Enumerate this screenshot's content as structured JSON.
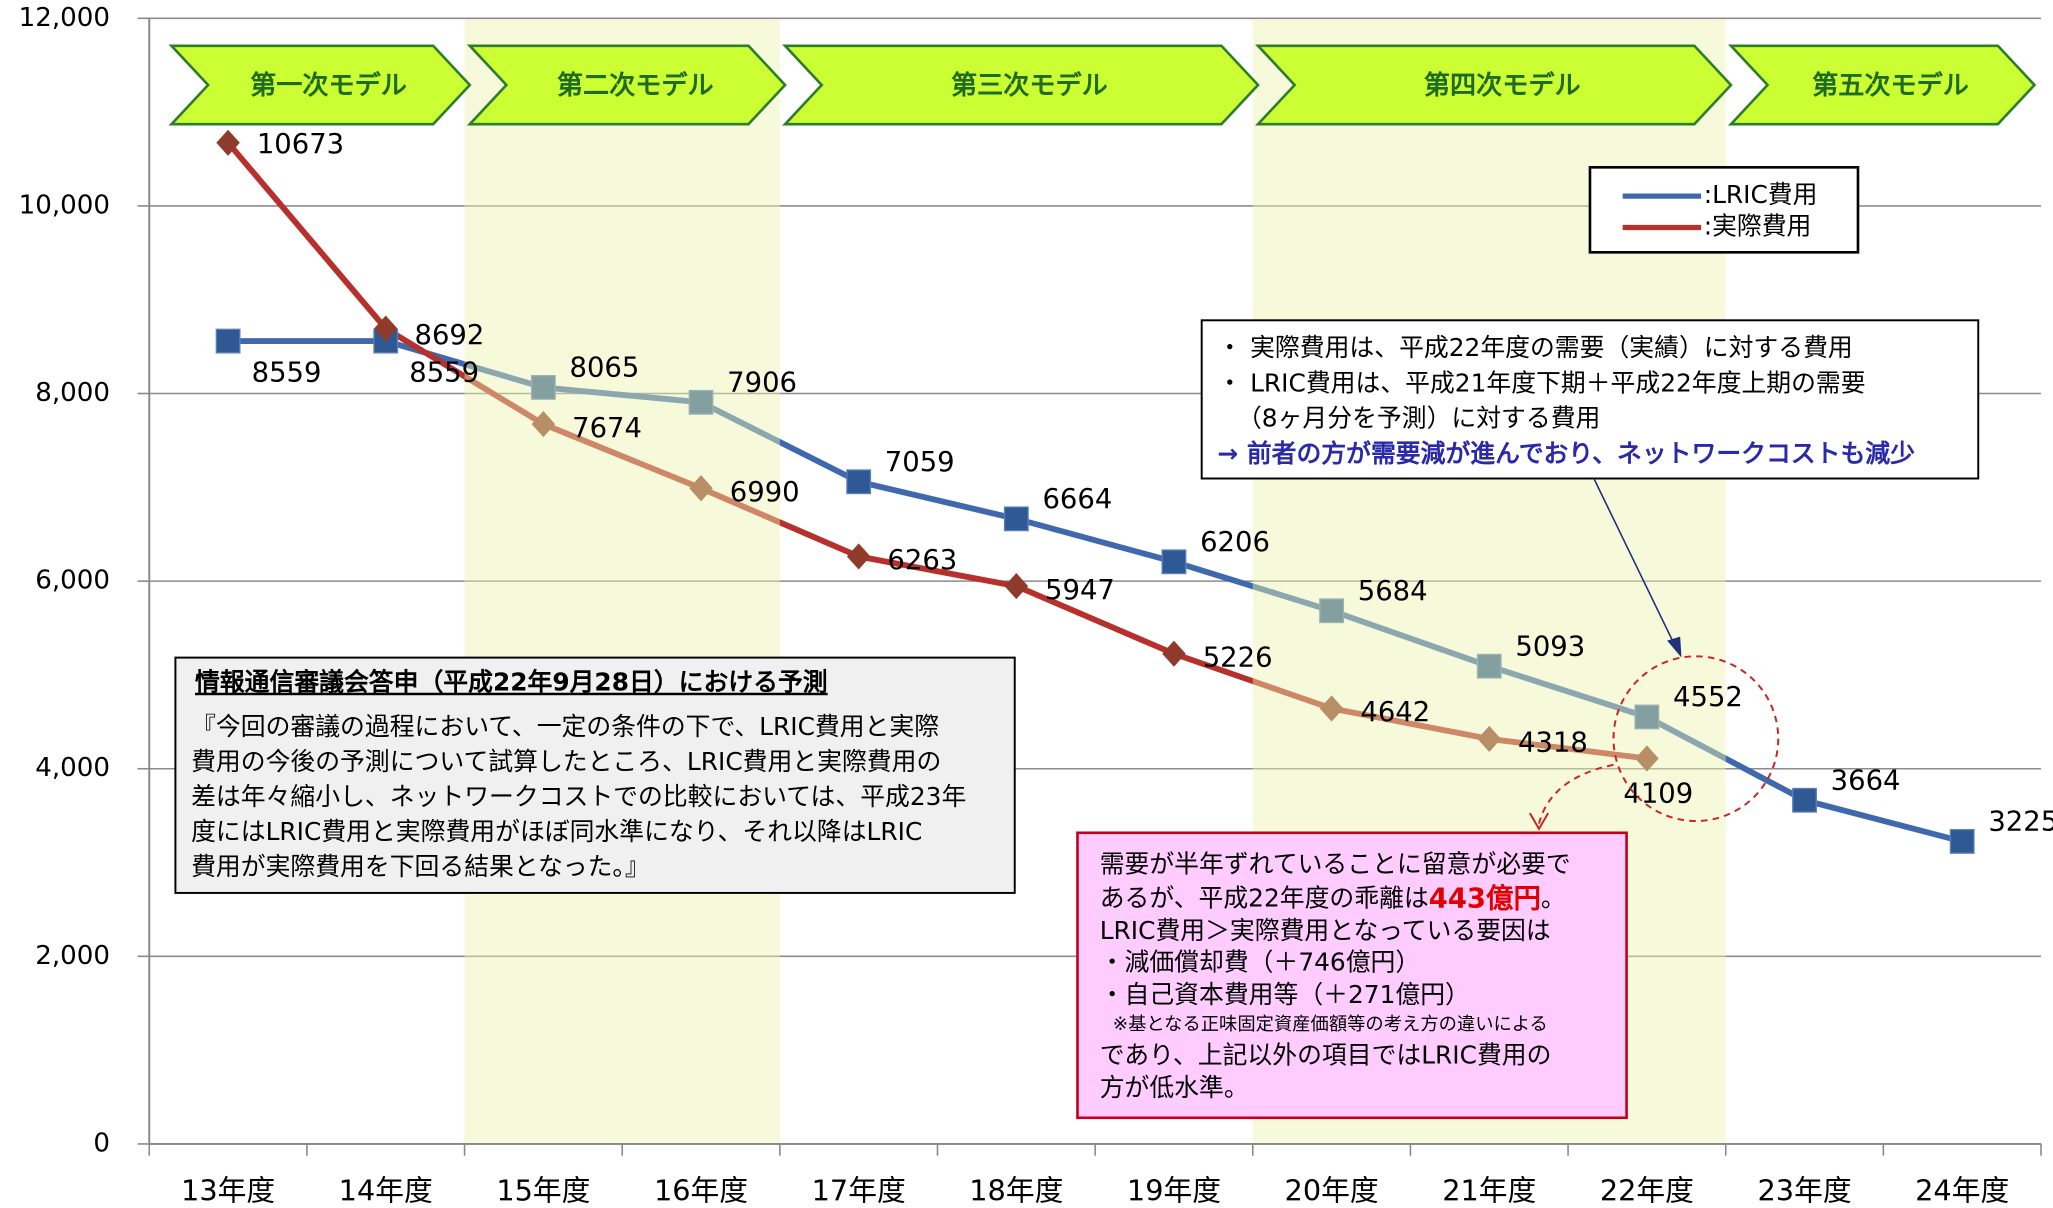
{
  "chart_data": {
    "type": "line",
    "categories": [
      "13年度",
      "14年度",
      "15年度",
      "16年度",
      "17年度",
      "18年度",
      "19年度",
      "20年度",
      "21年度",
      "22年度",
      "23年度",
      "24年度"
    ],
    "series": [
      {
        "name": ":LRIC費用",
        "color": "#4068ad",
        "marker": "square",
        "marker_color": "#2f5994",
        "values": [
          8559,
          8559,
          8065,
          7906,
          7059,
          6664,
          6206,
          5684,
          5093,
          4552,
          3664,
          3225
        ]
      },
      {
        "name": ":実際費用",
        "color": "#b8302c",
        "marker": "diamond",
        "marker_color": "#8e3b2c",
        "values": [
          10673,
          8692,
          7674,
          6990,
          6263,
          5947,
          5226,
          4642,
          4318,
          4109,
          null,
          null
        ]
      }
    ],
    "ylim": [
      0,
      12000
    ],
    "yticks": [
      0,
      {
        "value": 2000,
        "label": "2,000"
      },
      {
        "value": 4000,
        "label": "4,000"
      },
      {
        "value": 6000,
        "label": "6,000"
      },
      {
        "value": 8000,
        "label": "8,000"
      },
      {
        "value": 10000,
        "label": "10,000"
      },
      {
        "value": 12000,
        "label": "12,000"
      }
    ],
    "grid": true,
    "legend": "upper right",
    "phases": [
      {
        "label": "第一次モデル",
        "from": "13年度",
        "to": "14年度",
        "shaded": false
      },
      {
        "label": "第二次モデル",
        "from": "15年度",
        "to": "16年度",
        "shaded": true
      },
      {
        "label": "第三次モデル",
        "from": "17年度",
        "to": "19年度",
        "shaded": false
      },
      {
        "label": "第四次モデル",
        "from": "20年度",
        "to": "22年度",
        "shaded": true
      },
      {
        "label": "第五次モデル",
        "from": "23年度",
        "to": "24年度",
        "shaded": false
      }
    ],
    "note_box": {
      "lines": [
        "・ 実際費用は、平成22年度の需要（実績）に対する費用",
        "・ LRIC費用は、平成21年度下期＋平成22年度上期の需要",
        "（8ヶ月分を予測）に対する費用"
      ],
      "conclusion": "→ 前者の方が需要減が進んでおり、ネットワークコストも減少"
    },
    "forecast_box": {
      "title": "情報通信審議会答申（平成22年9月28日）における予測",
      "lines": [
        "『今回の審議の過程において、一定の条件の下で、LRIC費用と実際",
        "費用の今後の予測について試算したところ、LRIC費用と実際費用の",
        "差は年々縮小し、ネットワークコストでの比較においては、平成23年",
        "度にはLRIC費用と実際費用がほぼ同水準になり、それ以降はLRIC",
        "費用が実際費用を下回る結果となった。』"
      ]
    },
    "remark_box": {
      "lines": [
        "需要が半年ずれていることに留意が必要で",
        [
          {
            "text": "あるが、平成22年度の乖離は",
            "bold": false
          },
          {
            "text": "443億円",
            "bold": true
          },
          {
            "text": "。",
            "bold": false
          }
        ],
        "LRIC費用＞実際費用となっている要因は",
        "・減価償却費（＋746億円）",
        "・自己資本費用等（＋271億円）",
        "※基となる正味固定資産価額等の考え方の違いによる",
        "であり、上記以外の項目ではLRIC費用の",
        "方が低水準。"
      ]
    }
  }
}
